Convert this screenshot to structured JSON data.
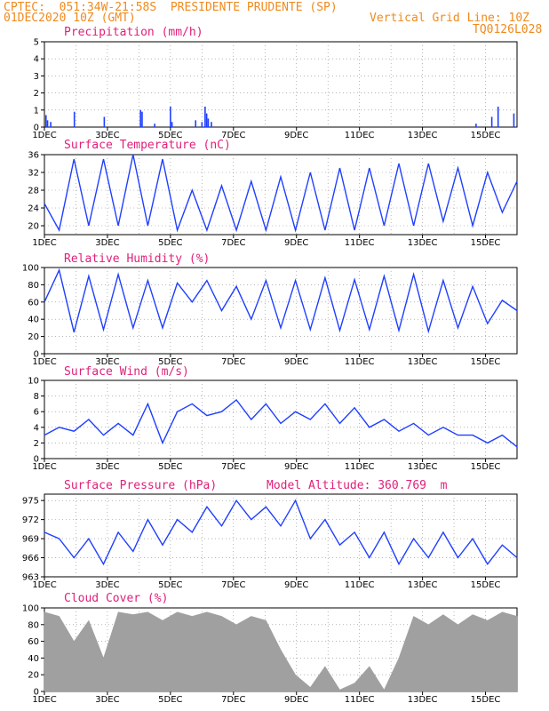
{
  "header": {
    "line1": "CPTEC:  051:34W-21:58S  PRESIDENTE PRUDENTE (SP)",
    "line2_left": "01DEC2020 10Z (GMT)",
    "line2_right": "Vertical Grid Line: 10Z",
    "line3_right": "TQ0126L028"
  },
  "colors": {
    "header": "#f08a1c",
    "title": "#e0207a",
    "series": "#1f3fff",
    "cloud": "#a0a0a0",
    "grid": "#888888"
  },
  "x_tick_labels": [
    "1DEC",
    "3DEC",
    "5DEC",
    "7DEC",
    "9DEC",
    "11DEC",
    "13DEC",
    "15DEC"
  ],
  "chart_data": [
    {
      "type": "bar",
      "title": "Precipitation (mm/h)",
      "ylim": [
        0,
        5
      ],
      "yticks": [
        "0",
        "1",
        "2",
        "3",
        "4",
        "5"
      ],
      "x": [
        1.05,
        1.1,
        1.2,
        1.95,
        2.9,
        4.05,
        4.1,
        4.5,
        5.0,
        5.05,
        5.8,
        6.0,
        6.1,
        6.15,
        6.2,
        6.3,
        14.7,
        15.2,
        15.4,
        15.9
      ],
      "values": [
        0.7,
        0.4,
        0.3,
        0.9,
        0.6,
        1.0,
        0.9,
        0.2,
        1.2,
        0.3,
        0.4,
        0.3,
        1.2,
        0.8,
        0.5,
        0.3,
        0.2,
        0.6,
        1.2,
        0.8
      ]
    },
    {
      "type": "line",
      "title": "Surface Temperature (nC)",
      "ylim": [
        18,
        36
      ],
      "yticks": [
        "20",
        "24",
        "28",
        "32",
        "36"
      ],
      "series": [
        {
          "values": [
            25,
            19,
            35,
            20,
            35,
            20,
            36,
            20,
            35,
            19,
            28,
            19,
            29,
            19,
            30,
            19,
            31,
            19,
            32,
            19,
            33,
            19,
            33,
            20,
            34,
            20,
            34,
            21,
            33,
            20,
            32,
            23,
            30
          ]
        }
      ]
    },
    {
      "type": "line",
      "title": "Relative Humidity (%)",
      "ylim": [
        0,
        100
      ],
      "yticks": [
        "0",
        "20",
        "40",
        "60",
        "80",
        "100"
      ],
      "series": [
        {
          "values": [
            60,
            97,
            25,
            90,
            28,
            92,
            30,
            85,
            30,
            82,
            60,
            85,
            50,
            78,
            40,
            85,
            30,
            85,
            28,
            88,
            27,
            86,
            28,
            90,
            27,
            92,
            26,
            85,
            30,
            78,
            35,
            62,
            50
          ]
        }
      ]
    },
    {
      "type": "line",
      "title": "Surface Wind (m/s)",
      "ylim": [
        0,
        10
      ],
      "yticks": [
        "0",
        "2",
        "4",
        "6",
        "8",
        "10"
      ],
      "series": [
        {
          "values": [
            3,
            4,
            3.5,
            5,
            3,
            4.5,
            3,
            7,
            2,
            6,
            7,
            5.5,
            6,
            7.5,
            5,
            7,
            4.5,
            6,
            5,
            7,
            4.5,
            6.5,
            4,
            5,
            3.5,
            4.5,
            3,
            4,
            3,
            3,
            2,
            3,
            1.5
          ]
        }
      ]
    },
    {
      "type": "line",
      "title": "Surface Pressure (hPa)",
      "annotation": "Model Altitude: 360.769  m",
      "ylim": [
        963,
        976
      ],
      "yticks": [
        "963",
        "966",
        "969",
        "972",
        "975"
      ],
      "series": [
        {
          "values": [
            970,
            969,
            966,
            969,
            965,
            970,
            967,
            972,
            968,
            972,
            970,
            974,
            971,
            975,
            972,
            974,
            971,
            975,
            969,
            972,
            968,
            970,
            966,
            970,
            965,
            969,
            966,
            970,
            966,
            969,
            965,
            968,
            966
          ]
        }
      ]
    },
    {
      "type": "area",
      "title": "Cloud Cover (%)",
      "ylim": [
        0,
        100
      ],
      "yticks": [
        "0",
        "20",
        "40",
        "60",
        "80",
        "100"
      ],
      "series": [
        {
          "values": [
            95,
            90,
            60,
            85,
            40,
            95,
            92,
            95,
            85,
            95,
            90,
            95,
            90,
            80,
            90,
            85,
            50,
            20,
            5,
            30,
            2,
            10,
            30,
            2,
            40,
            90,
            80,
            92,
            80,
            92,
            85,
            95,
            90
          ]
        }
      ]
    }
  ]
}
